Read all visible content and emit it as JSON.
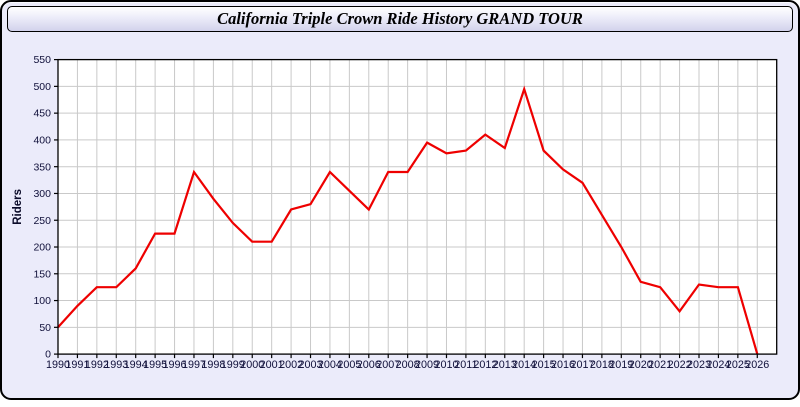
{
  "window": {
    "title": "California Triple Crown Ride History GRAND TOUR"
  },
  "chart_data": {
    "type": "line",
    "title": "California Triple Crown Ride History GRAND TOUR",
    "xlabel": "",
    "ylabel": "Riders",
    "x": [
      1990,
      1991,
      1992,
      1993,
      1994,
      1995,
      1996,
      1997,
      1998,
      1999,
      2000,
      2001,
      2002,
      2003,
      2004,
      2005,
      2006,
      2007,
      2008,
      2009,
      2010,
      2011,
      2012,
      2013,
      2014,
      2015,
      2016,
      2017,
      2018,
      2019,
      2020,
      2021,
      2022,
      2023,
      2024,
      2025,
      2026
    ],
    "series": [
      {
        "name": "Riders",
        "color": "#ee0000",
        "values": [
          50,
          90,
          125,
          125,
          160,
          225,
          225,
          340,
          290,
          245,
          210,
          210,
          270,
          280,
          340,
          305,
          270,
          340,
          340,
          395,
          375,
          380,
          410,
          385,
          495,
          380,
          345,
          320,
          260,
          200,
          135,
          125,
          80,
          130,
          125,
          125,
          0
        ]
      }
    ],
    "y_ticks": [
      0,
      50,
      100,
      150,
      200,
      250,
      300,
      350,
      400,
      450,
      500,
      550
    ],
    "ylim": [
      0,
      550
    ],
    "xlim": [
      1990,
      2027
    ],
    "grid": true,
    "legend_position": "none",
    "plot_bg": "#ffffff",
    "grid_color": "#c9c9c9",
    "frame_color": "#000000",
    "tick_label_color": "#10103a",
    "axis_title_color": "#0a0a28",
    "window_bg": "#ebebfa"
  }
}
